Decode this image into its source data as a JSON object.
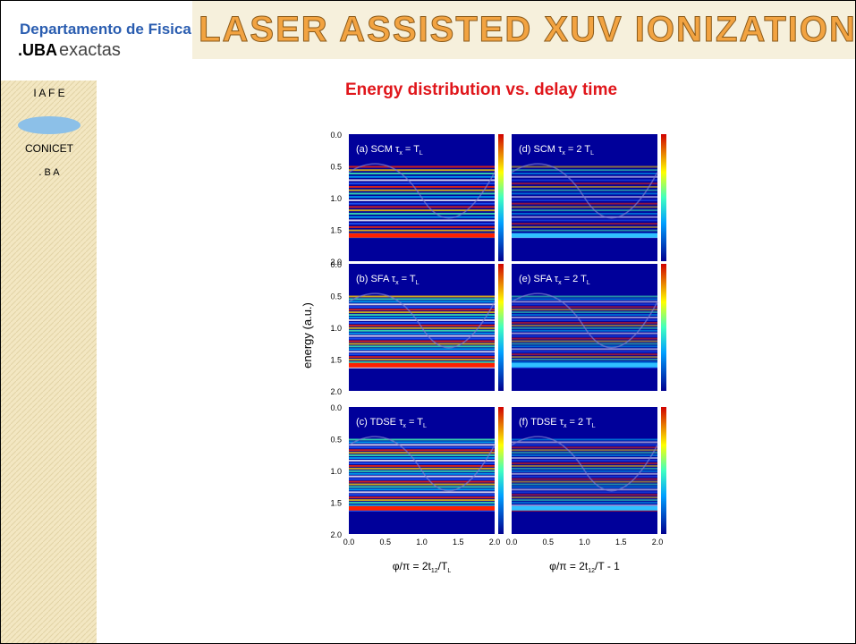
{
  "header": {
    "dept": "Departamento de Fisica",
    "uba": ".UBA",
    "exactas": "exactas",
    "title": "LASER ASSISTED XUV IONIZATION"
  },
  "sidebar": {
    "logo_top": "I A F E",
    "logo_mid": "CONICET",
    "logo_bot": ". B A"
  },
  "subtitle": "Energy distribution vs. delay time",
  "figure": {
    "ylabel": "energy (a.u.)",
    "yticks": [
      "0.0",
      "0.5",
      "1.0",
      "1.5",
      "2.0"
    ],
    "xticks": [
      "0.0",
      "0.5",
      "1.0",
      "1.5",
      "2.0"
    ],
    "xlabels": [
      {
        "pre": "φ/π = 2t",
        "sub1": "12",
        "mid": "/T",
        "sub2": "L",
        "post": ""
      },
      {
        "pre": "φ/π = 2t",
        "sub1": "12",
        "mid": "/T - 1",
        "sub2": "",
        "post": ""
      }
    ],
    "panels": [
      {
        "pre": "(a) SCM τ",
        "sub1": "x",
        "mid": " = T",
        "sub2": "L"
      },
      {
        "pre": "(d) SCM τ",
        "sub1": "x",
        "mid": " = 2 T",
        "sub2": "L"
      },
      {
        "pre": "(b) SFA τ",
        "sub1": "x",
        "mid": " = T",
        "sub2": "L"
      },
      {
        "pre": "(e) SFA τ",
        "sub1": "x",
        "mid": " = 2 T",
        "sub2": "L"
      },
      {
        "pre": "(c) TDSE τ",
        "sub1": "x",
        "mid": " = T",
        "sub2": "L"
      },
      {
        "pre": "(f) TDSE τ",
        "sub1": "x",
        "mid": " = 2 T",
        "sub2": "L"
      }
    ]
  }
}
